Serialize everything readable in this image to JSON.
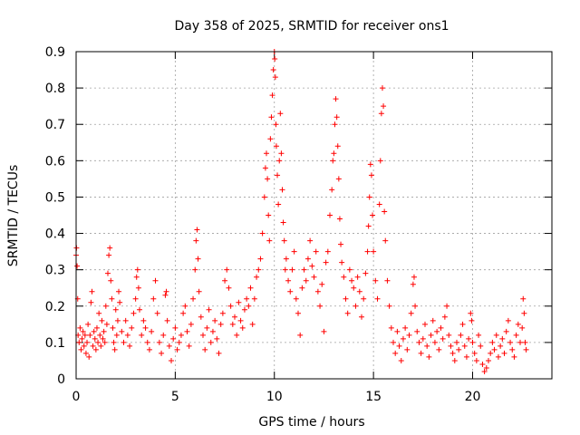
{
  "chart_data": {
    "type": "scatter",
    "title": "Day 358 of 2025, SRMTID for receiver ons1",
    "xlabel": "GPS time / hours",
    "ylabel": "SRMTID / TECUs",
    "xlim": [
      0,
      24
    ],
    "ylim": [
      0,
      0.9
    ],
    "xticks": [
      0,
      5,
      10,
      15,
      20
    ],
    "xtick_labels": [
      "0",
      "5",
      "10",
      "15",
      "20"
    ],
    "yticks": [
      0,
      0.1,
      0.2,
      0.3,
      0.4,
      0.5,
      0.6,
      0.7,
      0.8,
      0.9
    ],
    "ytick_labels": [
      "0",
      "0.1",
      "0.2",
      "0.3",
      "0.4",
      "0.5",
      "0.6",
      "0.7",
      "0.8",
      "0.9"
    ],
    "grid": true,
    "marker": "+",
    "color": "#ff0000",
    "series": [
      {
        "name": "SRMTID",
        "points": [
          [
            0.0,
            0.34
          ],
          [
            0.02,
            0.36
          ],
          [
            0.05,
            0.31
          ],
          [
            0.08,
            0.22
          ],
          [
            0.1,
            0.12
          ],
          [
            0.15,
            0.1
          ],
          [
            0.2,
            0.14
          ],
          [
            0.25,
            0.08
          ],
          [
            0.3,
            0.11
          ],
          [
            0.35,
            0.13
          ],
          [
            0.4,
            0.09
          ],
          [
            0.45,
            0.12
          ],
          [
            0.5,
            0.07
          ],
          [
            0.55,
            0.1
          ],
          [
            0.6,
            0.15
          ],
          [
            0.65,
            0.06
          ],
          [
            0.7,
            0.12
          ],
          [
            0.75,
            0.21
          ],
          [
            0.8,
            0.24
          ],
          [
            0.85,
            0.09
          ],
          [
            0.9,
            0.13
          ],
          [
            0.95,
            0.11
          ],
          [
            1.0,
            0.08
          ],
          [
            1.05,
            0.14
          ],
          [
            1.1,
            0.1
          ],
          [
            1.15,
            0.18
          ],
          [
            1.2,
            0.12
          ],
          [
            1.25,
            0.09
          ],
          [
            1.3,
            0.16
          ],
          [
            1.35,
            0.11
          ],
          [
            1.4,
            0.13
          ],
          [
            1.45,
            0.1
          ],
          [
            1.5,
            0.2
          ],
          [
            1.55,
            0.15
          ],
          [
            1.6,
            0.29
          ],
          [
            1.65,
            0.34
          ],
          [
            1.7,
            0.36
          ],
          [
            1.75,
            0.27
          ],
          [
            1.8,
            0.22
          ],
          [
            1.85,
            0.14
          ],
          [
            1.9,
            0.1
          ],
          [
            1.95,
            0.08
          ],
          [
            2.0,
            0.19
          ],
          [
            2.05,
            0.12
          ],
          [
            2.1,
            0.16
          ],
          [
            2.15,
            0.24
          ],
          [
            2.2,
            0.21
          ],
          [
            2.3,
            0.13
          ],
          [
            2.4,
            0.1
          ],
          [
            2.5,
            0.16
          ],
          [
            2.6,
            0.12
          ],
          [
            2.7,
            0.09
          ],
          [
            2.8,
            0.14
          ],
          [
            2.9,
            0.18
          ],
          [
            3.0,
            0.22
          ],
          [
            3.05,
            0.28
          ],
          [
            3.1,
            0.3
          ],
          [
            3.15,
            0.25
          ],
          [
            3.2,
            0.19
          ],
          [
            3.3,
            0.12
          ],
          [
            3.4,
            0.16
          ],
          [
            3.5,
            0.14
          ],
          [
            3.6,
            0.1
          ],
          [
            3.7,
            0.08
          ],
          [
            3.8,
            0.13
          ],
          [
            3.9,
            0.22
          ],
          [
            4.0,
            0.27
          ],
          [
            4.1,
            0.18
          ],
          [
            4.2,
            0.1
          ],
          [
            4.3,
            0.07
          ],
          [
            4.4,
            0.12
          ],
          [
            4.5,
            0.23
          ],
          [
            4.55,
            0.24
          ],
          [
            4.6,
            0.16
          ],
          [
            4.7,
            0.09
          ],
          [
            4.8,
            0.05
          ],
          [
            4.9,
            0.11
          ],
          [
            5.0,
            0.14
          ],
          [
            5.1,
            0.08
          ],
          [
            5.2,
            0.1
          ],
          [
            5.3,
            0.12
          ],
          [
            5.4,
            0.18
          ],
          [
            5.5,
            0.2
          ],
          [
            5.6,
            0.13
          ],
          [
            5.7,
            0.09
          ],
          [
            5.8,
            0.15
          ],
          [
            5.9,
            0.22
          ],
          [
            6.0,
            0.3
          ],
          [
            6.05,
            0.38
          ],
          [
            6.1,
            0.41
          ],
          [
            6.15,
            0.33
          ],
          [
            6.2,
            0.24
          ],
          [
            6.3,
            0.17
          ],
          [
            6.4,
            0.12
          ],
          [
            6.5,
            0.08
          ],
          [
            6.6,
            0.14
          ],
          [
            6.7,
            0.19
          ],
          [
            6.8,
            0.1
          ],
          [
            6.9,
            0.13
          ],
          [
            7.0,
            0.16
          ],
          [
            7.1,
            0.11
          ],
          [
            7.2,
            0.07
          ],
          [
            7.3,
            0.15
          ],
          [
            7.4,
            0.18
          ],
          [
            7.5,
            0.27
          ],
          [
            7.6,
            0.3
          ],
          [
            7.7,
            0.25
          ],
          [
            7.8,
            0.2
          ],
          [
            7.9,
            0.15
          ],
          [
            8.0,
            0.17
          ],
          [
            8.1,
            0.12
          ],
          [
            8.2,
            0.21
          ],
          [
            8.3,
            0.16
          ],
          [
            8.4,
            0.14
          ],
          [
            8.5,
            0.19
          ],
          [
            8.6,
            0.22
          ],
          [
            8.7,
            0.2
          ],
          [
            8.8,
            0.25
          ],
          [
            8.9,
            0.15
          ],
          [
            9.0,
            0.22
          ],
          [
            9.1,
            0.28
          ],
          [
            9.2,
            0.3
          ],
          [
            9.3,
            0.33
          ],
          [
            9.4,
            0.4
          ],
          [
            9.5,
            0.5
          ],
          [
            9.55,
            0.58
          ],
          [
            9.6,
            0.62
          ],
          [
            9.65,
            0.55
          ],
          [
            9.7,
            0.45
          ],
          [
            9.75,
            0.38
          ],
          [
            9.8,
            0.66
          ],
          [
            9.85,
            0.72
          ],
          [
            9.9,
            0.78
          ],
          [
            9.95,
            0.85
          ],
          [
            10.0,
            0.9
          ],
          [
            10.02,
            0.88
          ],
          [
            10.05,
            0.83
          ],
          [
            10.08,
            0.7
          ],
          [
            10.1,
            0.64
          ],
          [
            10.15,
            0.56
          ],
          [
            10.2,
            0.48
          ],
          [
            10.25,
            0.6
          ],
          [
            10.3,
            0.73
          ],
          [
            10.35,
            0.62
          ],
          [
            10.4,
            0.52
          ],
          [
            10.45,
            0.43
          ],
          [
            10.5,
            0.38
          ],
          [
            10.55,
            0.3
          ],
          [
            10.6,
            0.33
          ],
          [
            10.7,
            0.27
          ],
          [
            10.8,
            0.24
          ],
          [
            10.9,
            0.3
          ],
          [
            11.0,
            0.35
          ],
          [
            11.1,
            0.22
          ],
          [
            11.2,
            0.18
          ],
          [
            11.3,
            0.12
          ],
          [
            11.4,
            0.25
          ],
          [
            11.5,
            0.3
          ],
          [
            11.6,
            0.27
          ],
          [
            11.7,
            0.33
          ],
          [
            11.8,
            0.38
          ],
          [
            11.9,
            0.31
          ],
          [
            12.0,
            0.28
          ],
          [
            12.1,
            0.35
          ],
          [
            12.2,
            0.24
          ],
          [
            12.3,
            0.2
          ],
          [
            12.4,
            0.26
          ],
          [
            12.5,
            0.13
          ],
          [
            12.6,
            0.32
          ],
          [
            12.7,
            0.35
          ],
          [
            12.8,
            0.45
          ],
          [
            12.9,
            0.52
          ],
          [
            12.95,
            0.6
          ],
          [
            13.0,
            0.62
          ],
          [
            13.05,
            0.7
          ],
          [
            13.1,
            0.77
          ],
          [
            13.15,
            0.72
          ],
          [
            13.2,
            0.64
          ],
          [
            13.25,
            0.55
          ],
          [
            13.3,
            0.44
          ],
          [
            13.35,
            0.37
          ],
          [
            13.4,
            0.32
          ],
          [
            13.5,
            0.28
          ],
          [
            13.6,
            0.22
          ],
          [
            13.7,
            0.18
          ],
          [
            13.8,
            0.3
          ],
          [
            13.9,
            0.27
          ],
          [
            14.0,
            0.25
          ],
          [
            14.1,
            0.2
          ],
          [
            14.2,
            0.28
          ],
          [
            14.3,
            0.24
          ],
          [
            14.4,
            0.17
          ],
          [
            14.5,
            0.22
          ],
          [
            14.6,
            0.29
          ],
          [
            14.7,
            0.35
          ],
          [
            14.75,
            0.42
          ],
          [
            14.8,
            0.5
          ],
          [
            14.85,
            0.59
          ],
          [
            14.9,
            0.56
          ],
          [
            14.95,
            0.45
          ],
          [
            15.0,
            0.35
          ],
          [
            15.1,
            0.27
          ],
          [
            15.2,
            0.22
          ],
          [
            15.3,
            0.48
          ],
          [
            15.35,
            0.6
          ],
          [
            15.4,
            0.73
          ],
          [
            15.45,
            0.8
          ],
          [
            15.5,
            0.75
          ],
          [
            15.55,
            0.46
          ],
          [
            15.6,
            0.38
          ],
          [
            15.7,
            0.27
          ],
          [
            15.8,
            0.2
          ],
          [
            15.9,
            0.14
          ],
          [
            16.0,
            0.1
          ],
          [
            16.1,
            0.07
          ],
          [
            16.2,
            0.13
          ],
          [
            16.3,
            0.09
          ],
          [
            16.4,
            0.05
          ],
          [
            16.5,
            0.11
          ],
          [
            16.6,
            0.14
          ],
          [
            16.7,
            0.08
          ],
          [
            16.8,
            0.12
          ],
          [
            16.9,
            0.18
          ],
          [
            17.0,
            0.26
          ],
          [
            17.05,
            0.28
          ],
          [
            17.1,
            0.2
          ],
          [
            17.2,
            0.13
          ],
          [
            17.3,
            0.1
          ],
          [
            17.4,
            0.07
          ],
          [
            17.5,
            0.11
          ],
          [
            17.6,
            0.15
          ],
          [
            17.7,
            0.09
          ],
          [
            17.8,
            0.06
          ],
          [
            17.9,
            0.12
          ],
          [
            18.0,
            0.16
          ],
          [
            18.1,
            0.1
          ],
          [
            18.2,
            0.13
          ],
          [
            18.3,
            0.08
          ],
          [
            18.4,
            0.14
          ],
          [
            18.5,
            0.11
          ],
          [
            18.6,
            0.17
          ],
          [
            18.7,
            0.2
          ],
          [
            18.8,
            0.12
          ],
          [
            18.9,
            0.09
          ],
          [
            19.0,
            0.07
          ],
          [
            19.1,
            0.05
          ],
          [
            19.2,
            0.1
          ],
          [
            19.3,
            0.08
          ],
          [
            19.4,
            0.12
          ],
          [
            19.5,
            0.15
          ],
          [
            19.6,
            0.09
          ],
          [
            19.7,
            0.06
          ],
          [
            19.8,
            0.11
          ],
          [
            19.9,
            0.18
          ],
          [
            19.95,
            0.16
          ],
          [
            20.0,
            0.1
          ],
          [
            20.1,
            0.07
          ],
          [
            20.2,
            0.05
          ],
          [
            20.3,
            0.12
          ],
          [
            20.4,
            0.09
          ],
          [
            20.5,
            0.04
          ],
          [
            20.6,
            0.02
          ],
          [
            20.7,
            0.03
          ],
          [
            20.8,
            0.05
          ],
          [
            20.9,
            0.07
          ],
          [
            21.0,
            0.1
          ],
          [
            21.1,
            0.08
          ],
          [
            21.2,
            0.12
          ],
          [
            21.3,
            0.06
          ],
          [
            21.4,
            0.09
          ],
          [
            21.5,
            0.11
          ],
          [
            21.6,
            0.07
          ],
          [
            21.7,
            0.13
          ],
          [
            21.8,
            0.16
          ],
          [
            21.9,
            0.1
          ],
          [
            22.0,
            0.08
          ],
          [
            22.1,
            0.06
          ],
          [
            22.2,
            0.12
          ],
          [
            22.3,
            0.15
          ],
          [
            22.4,
            0.1
          ],
          [
            22.5,
            0.14
          ],
          [
            22.55,
            0.22
          ],
          [
            22.6,
            0.18
          ],
          [
            22.65,
            0.1
          ],
          [
            22.7,
            0.08
          ]
        ]
      }
    ]
  }
}
